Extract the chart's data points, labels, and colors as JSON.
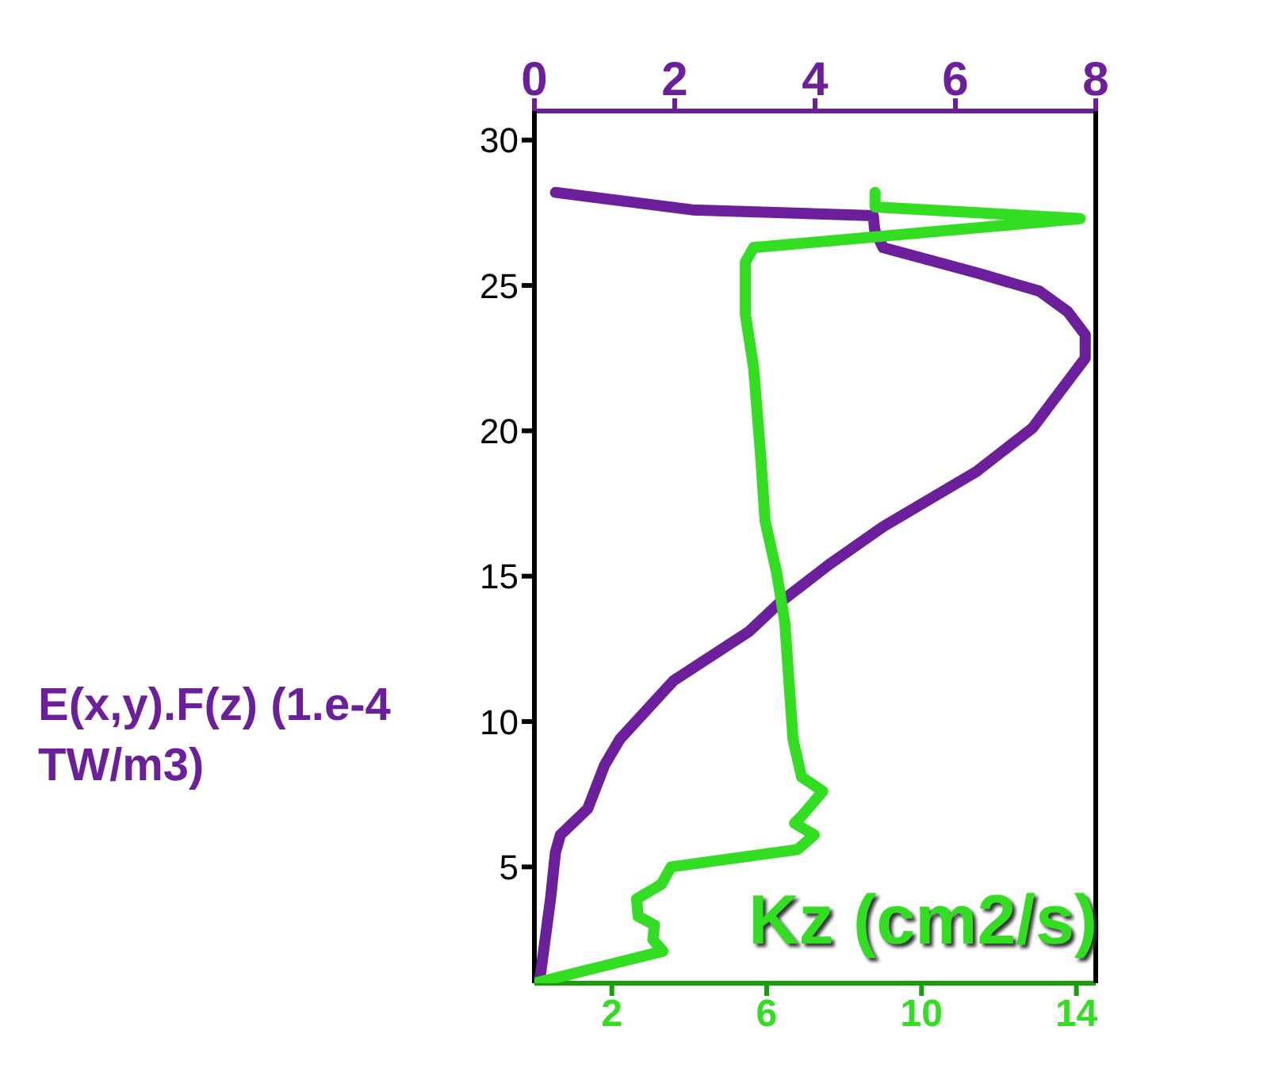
{
  "chart_data": {
    "type": "line",
    "xlabel": "Kz (cm2/s)",
    "x2label": "E(x,y).F(z) (1.e-4 TW/m3)",
    "xlim": [
      0,
      14.5
    ],
    "xticks": [
      2,
      6,
      10,
      14
    ],
    "x2lim": [
      0,
      8
    ],
    "x2ticks": [
      0,
      2,
      4,
      6,
      8
    ],
    "ylim": [
      1,
      31
    ],
    "yticks": [
      5,
      10,
      15,
      20,
      25,
      30
    ],
    "line_style": "solid",
    "series": [
      {
        "color": "#6b1f9a",
        "axis": "x2",
        "x": [
          0.3,
          2.25,
          4.83,
          4.85,
          4.97,
          6.35,
          7.2,
          7.6,
          7.85,
          7.85,
          7.1,
          6.3,
          4.97,
          4.2,
          3.5,
          3.06,
          1.98,
          1.22,
          1.0,
          0.76,
          0.37,
          0.3,
          0.23,
          0.07
        ],
        "values": [
          28.2,
          27.6,
          27.4,
          26.9,
          26.3,
          25.4,
          24.8,
          24.1,
          23.3,
          22.5,
          20.1,
          18.6,
          16.7,
          15.4,
          14.1,
          13.1,
          11.4,
          9.4,
          8.5,
          7.0,
          6.1,
          5.5,
          3.9,
          1.0
        ]
      },
      {
        "color": "#33dd22",
        "x": [
          8.8,
          8.8,
          14.1,
          5.66,
          5.45,
          5.45,
          5.66,
          5.83,
          5.96,
          6.26,
          6.47,
          6.68,
          6.9,
          7.45,
          6.94,
          6.72,
          7.23,
          6.8,
          3.53,
          3.28,
          2.64,
          2.68,
          3.1,
          3.06,
          3.32,
          0.0
        ],
        "values": [
          28.2,
          27.7,
          27.3,
          26.3,
          25.8,
          24.0,
          22.2,
          19.4,
          16.9,
          15.1,
          13.4,
          9.4,
          8.1,
          7.6,
          6.8,
          6.5,
          6.1,
          5.6,
          5.0,
          4.4,
          3.9,
          3.3,
          3.0,
          2.5,
          2.1,
          1.0
        ]
      }
    ]
  }
}
